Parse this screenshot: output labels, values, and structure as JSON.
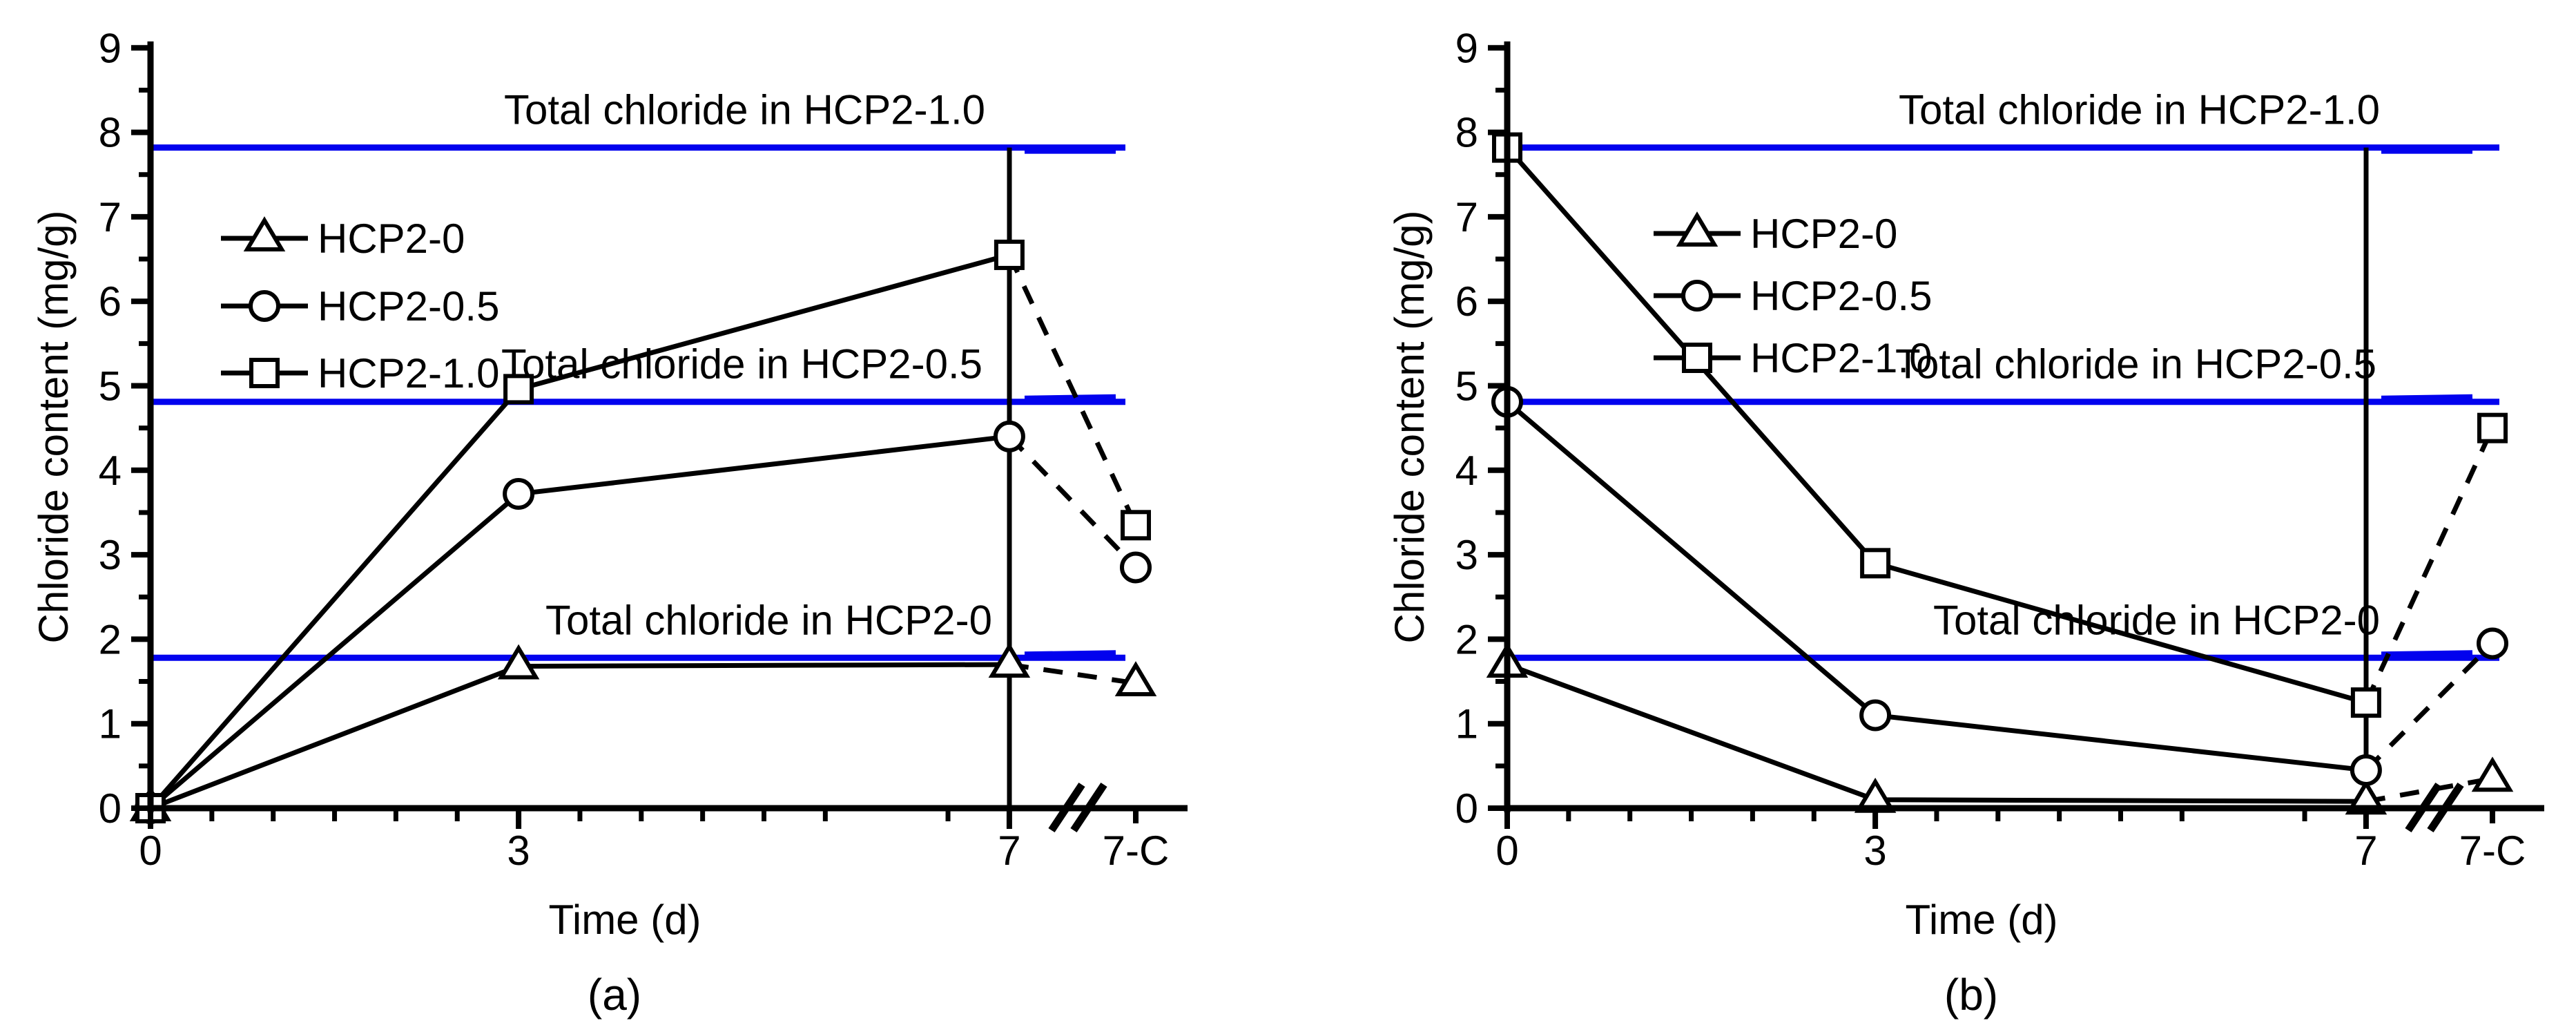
{
  "figure": {
    "background": "#ffffff",
    "accent_blue": "#0202ee",
    "line_color": "#000000"
  },
  "chart_data": [
    {
      "panel": "a",
      "caption": "(a)",
      "type": "line",
      "title": "",
      "xlabel": "Time (d)",
      "ylabel": "Chloride content (mg/g)",
      "x_categories": [
        "0",
        "3",
        "7",
        "7-C"
      ],
      "x_days": [
        0,
        3,
        7
      ],
      "x_axis_break_between": [
        "7",
        "7-C"
      ],
      "ylim": [
        0,
        9
      ],
      "y_major_tick": 1,
      "y_minor_tick": 0.5,
      "x_minor_tick_days": 0.5,
      "grid": false,
      "legend_position": "upper-left-inside",
      "vertical_marker_day": 7,
      "reference_lines": [
        {
          "label": "Total chloride in HCP2-1.0",
          "value": 7.82
        },
        {
          "label": "Total chloride in HCP2-0.5",
          "value": 4.81
        },
        {
          "label": "Total chloride in HCP2-0",
          "value": 1.78
        }
      ],
      "series": [
        {
          "name": "HCP2-0",
          "marker": "triangle",
          "values": [
            0,
            1.68,
            1.7,
            1.48
          ]
        },
        {
          "name": "HCP2-0.5",
          "marker": "circle",
          "values": [
            0,
            3.72,
            4.4,
            2.85
          ]
        },
        {
          "name": "HCP2-1.0",
          "marker": "square",
          "values": [
            0,
            4.96,
            6.55,
            3.35
          ]
        }
      ]
    },
    {
      "panel": "b",
      "caption": "(b)",
      "type": "line",
      "title": "",
      "xlabel": "Time (d)",
      "ylabel": "Chloride content (mg/g)",
      "x_categories": [
        "0",
        "3",
        "7",
        "7-C"
      ],
      "x_days": [
        0,
        3,
        7
      ],
      "x_axis_break_between": [
        "7",
        "7-C"
      ],
      "ylim": [
        0,
        9
      ],
      "y_major_tick": 1,
      "y_minor_tick": 0.5,
      "x_minor_tick_days": 0.5,
      "grid": false,
      "legend_position": "upper-left-inside",
      "vertical_marker_day": 7,
      "reference_lines": [
        {
          "label": "Total chloride in HCP2-1.0",
          "value": 7.82
        },
        {
          "label": "Total chloride in HCP2-0.5",
          "value": 4.81
        },
        {
          "label": "Total chloride in HCP2-0",
          "value": 1.78
        }
      ],
      "series": [
        {
          "name": "HCP2-0",
          "marker": "triangle",
          "values": [
            1.7,
            0.1,
            0.08,
            0.35
          ]
        },
        {
          "name": "HCP2-0.5",
          "marker": "circle",
          "values": [
            4.81,
            1.1,
            0.45,
            1.95
          ]
        },
        {
          "name": "HCP2-1.0",
          "marker": "square",
          "values": [
            7.82,
            2.9,
            1.25,
            4.5
          ]
        }
      ]
    }
  ]
}
